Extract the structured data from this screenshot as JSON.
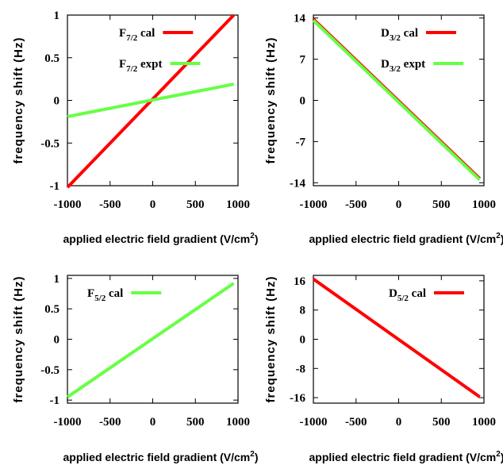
{
  "chart_data": [
    {
      "type": "line",
      "xlabel": "applied electric field gradient (V/cm²)",
      "ylabel": "frequency shift (Hz)",
      "xlim": [
        -1000,
        1000
      ],
      "ylim": [
        -1,
        1
      ],
      "xticks": [
        "-1000",
        "-500",
        "0",
        "500",
        "1000"
      ],
      "yticks": [
        "1",
        "0.5",
        "0",
        "-0.5",
        "-1"
      ],
      "ytick_values": [
        1,
        0.5,
        0,
        -0.5,
        -1
      ],
      "legend_position": "top-right",
      "series": [
        {
          "name_main": "F",
          "name_sub": "7/2",
          "name_tail": " cal",
          "color": "#ff0000",
          "x": [
            -1000,
            950
          ],
          "y": [
            -1.02,
            1.0
          ]
        },
        {
          "name_main": "F",
          "name_sub": "7/2",
          "name_tail": " expt",
          "color": "#66ff44",
          "x": [
            -1000,
            950
          ],
          "y": [
            -0.19,
            0.19
          ]
        }
      ]
    },
    {
      "type": "line",
      "xlabel": "applied electric field gradient (V/cm²)",
      "ylabel": "frequency shift (Hz)",
      "xlim": [
        -1000,
        1000
      ],
      "ylim": [
        -14.5,
        14.5
      ],
      "xticks": [
        "-1000",
        "-500",
        "0",
        "500",
        "1000"
      ],
      "yticks": [
        "14",
        "7",
        "0",
        "-7",
        "-14"
      ],
      "ytick_values": [
        14,
        7,
        0,
        -7,
        -14
      ],
      "legend_position": "top-right",
      "series": [
        {
          "name_main": "D",
          "name_sub": "3/2",
          "name_tail": " cal",
          "color": "#ff0000",
          "x": [
            -1000,
            950
          ],
          "y": [
            13.8,
            -13.3
          ]
        },
        {
          "name_main": "D",
          "name_sub": "3/2",
          "name_tail": " expt",
          "color": "#66ff44",
          "x": [
            -1000,
            950
          ],
          "y": [
            13.6,
            -13.5
          ]
        }
      ]
    },
    {
      "type": "line",
      "xlabel": "applied electric field gradient (V/cm²)",
      "ylabel": "frequency shift (Hz)",
      "xlim": [
        -1000,
        1000
      ],
      "ylim": [
        -1.05,
        1.05
      ],
      "xticks": [
        "-1000",
        "-500",
        "0",
        "500",
        "1000"
      ],
      "yticks": [
        "1",
        "0.5",
        "0",
        "-0.5",
        "-1"
      ],
      "ytick_values": [
        1,
        0.5,
        0,
        -0.5,
        -1
      ],
      "legend_position": "top-left",
      "series": [
        {
          "name_main": "F",
          "name_sub": "5/2",
          "name_tail": " cal",
          "color": "#66ff44",
          "x": [
            -1000,
            950
          ],
          "y": [
            -0.95,
            0.92
          ]
        }
      ]
    },
    {
      "type": "line",
      "xlabel": "applied electric field gradient (V/cm²)",
      "ylabel": "frequency shift (Hz)",
      "xlim": [
        -1000,
        1000
      ],
      "ylim": [
        -17.5,
        17.5
      ],
      "xticks": [
        "-1000",
        "-500",
        "0",
        "500",
        "1000"
      ],
      "yticks": [
        "16",
        "8",
        "0",
        "-8",
        "-16"
      ],
      "ytick_values": [
        16,
        8,
        0,
        -8,
        -16
      ],
      "legend_position": "top-right",
      "series": [
        {
          "name_main": "D",
          "name_sub": "5/2",
          "name_tail": " cal",
          "color": "#ff0000",
          "x": [
            -1000,
            950
          ],
          "y": [
            16.5,
            -15.8
          ]
        }
      ]
    }
  ]
}
